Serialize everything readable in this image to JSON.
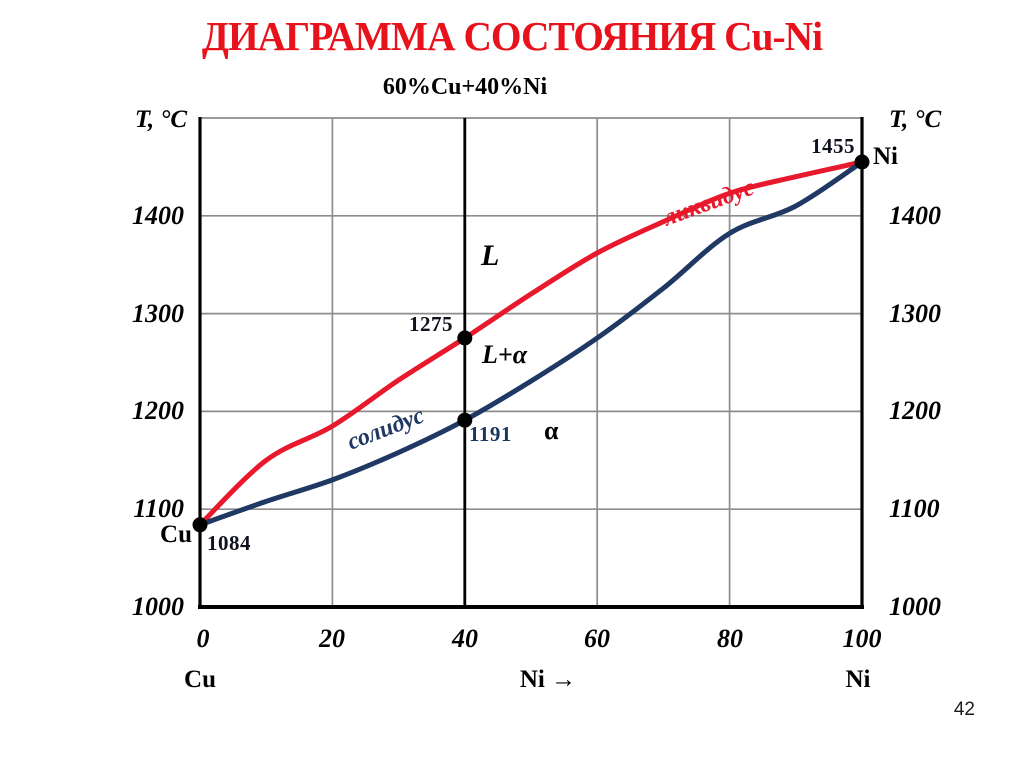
{
  "page": {
    "title": "ДИАГРАММА СОСТОЯНИЯ Cu-Ni",
    "page_number": "42"
  },
  "chart_data": {
    "type": "line",
    "title": "ДИАГРАММА СОСТОЯНИЯ Cu-Ni",
    "subtitle": "60%Cu+40%Ni",
    "ylabel_left": "T, °C",
    "ylabel_right": "T, °C",
    "xlabel_left": "Cu",
    "xlabel_center": "Ni →",
    "xlabel_right": "Ni",
    "xlim": [
      0,
      100
    ],
    "ylim": [
      1000,
      1500
    ],
    "x_ticks": [
      0,
      20,
      40,
      60,
      80,
      100
    ],
    "y_ticks": [
      1000,
      1100,
      1200,
      1300,
      1400
    ],
    "grid": true,
    "grid_color": "#8d8d8d",
    "composition_line_x": 40,
    "series": [
      {
        "name": "ликвидус",
        "color": "#e8192c",
        "x": [
          0,
          10,
          20,
          30,
          40,
          50,
          60,
          70,
          80,
          90,
          100
        ],
        "values": [
          1084,
          1150,
          1185,
          1232,
          1275,
          1320,
          1362,
          1394,
          1423,
          1440,
          1455
        ]
      },
      {
        "name": "солидус",
        "color": "#1f3864",
        "x": [
          0,
          10,
          20,
          30,
          40,
          50,
          60,
          70,
          80,
          90,
          100
        ],
        "values": [
          1084,
          1108,
          1130,
          1158,
          1191,
          1231,
          1275,
          1326,
          1382,
          1410,
          1455
        ]
      }
    ],
    "key_points": [
      {
        "x": 0,
        "t": 1084,
        "label": "1084",
        "element": "Cu"
      },
      {
        "x": 40,
        "t": 1275,
        "label": "1275"
      },
      {
        "x": 40,
        "t": 1191,
        "label": "1191"
      },
      {
        "x": 100,
        "t": 1455,
        "label": "1455",
        "element": "Ni"
      }
    ],
    "phase_regions": {
      "liquid": "L",
      "liquid_solid": "L+α",
      "solid": "α"
    }
  }
}
